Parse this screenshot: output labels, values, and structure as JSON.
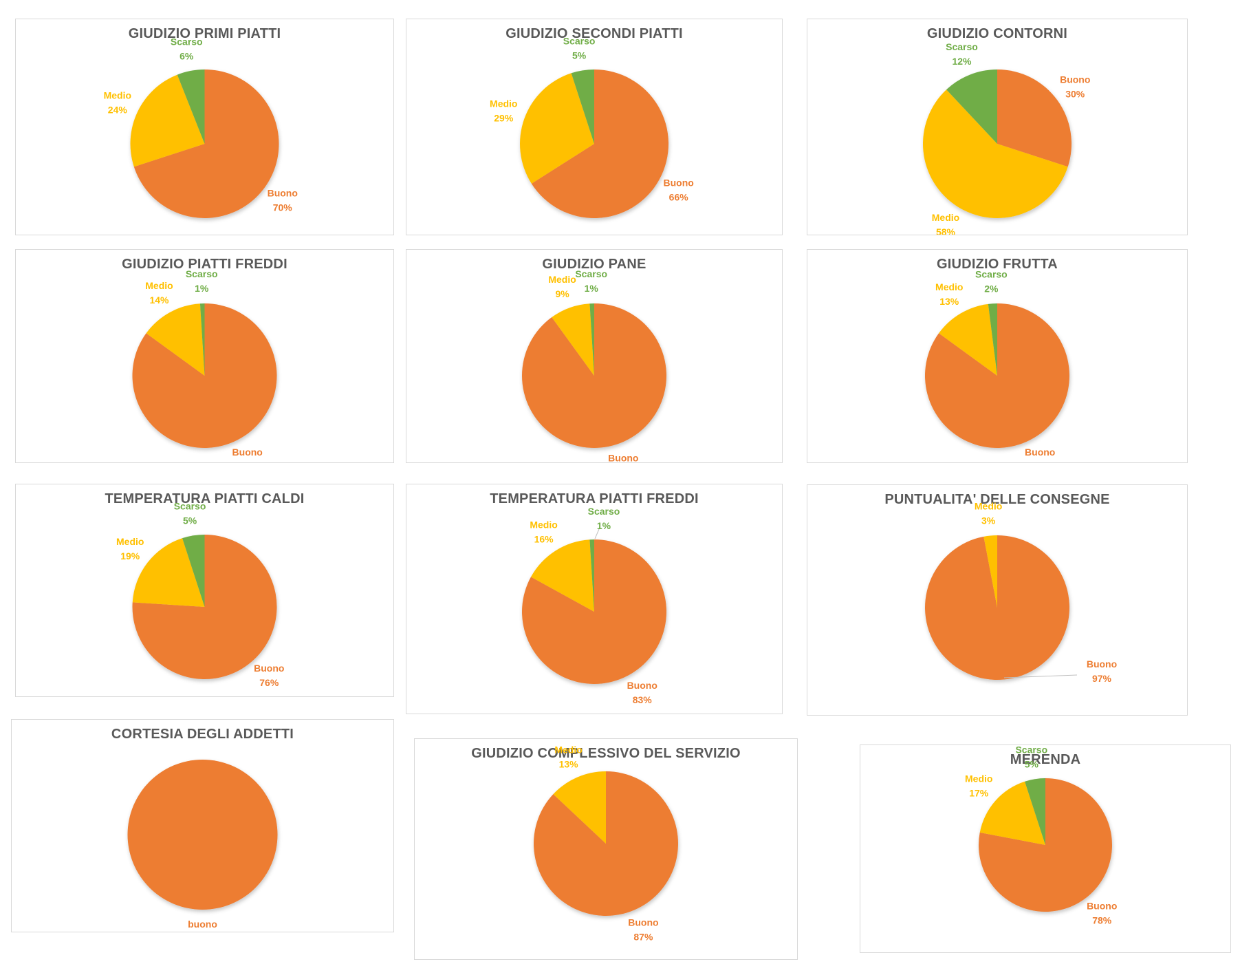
{
  "page": {
    "background": "#ffffff"
  },
  "colors": {
    "buono": "#ED7D31",
    "medio": "#FFC000",
    "scarso": "#70AD47",
    "title": "#595959",
    "box_border": "#D9D9D9",
    "leader_line": "#BFBFBF"
  },
  "chart_data": [
    {
      "type": "pie",
      "title": "GIUDIZIO PRIMI PIATTI",
      "legend": "none",
      "labels_format": "category name + percentage",
      "slices": [
        {
          "label": "Buono",
          "value": 70
        },
        {
          "label": "Medio",
          "value": 24
        },
        {
          "label": "Scarso",
          "value": 6
        }
      ]
    },
    {
      "type": "pie",
      "title": "GIUDIZIO SECONDI PIATTI",
      "legend": "none",
      "slices": [
        {
          "label": "Buono",
          "value": 66
        },
        {
          "label": "Medio",
          "value": 29
        },
        {
          "label": "Scarso",
          "value": 5
        }
      ]
    },
    {
      "type": "pie",
      "title": "GIUDIZIO CONTORNI",
      "legend": "none",
      "slices": [
        {
          "label": "Buono",
          "value": 30
        },
        {
          "label": "Medio",
          "value": 58
        },
        {
          "label": "Scarso",
          "value": 12
        }
      ]
    },
    {
      "type": "pie",
      "title": "GIUDIZIO PIATTI FREDDI",
      "legend": "none",
      "slices": [
        {
          "label": "Buono",
          "value": 85
        },
        {
          "label": "Medio",
          "value": 14
        },
        {
          "label": "Scarso",
          "value": 1
        }
      ]
    },
    {
      "type": "pie",
      "title": "GIUDIZIO PANE",
      "legend": "none",
      "slices": [
        {
          "label": "Buono",
          "value": 90
        },
        {
          "label": "Medio",
          "value": 9
        },
        {
          "label": "Scarso",
          "value": 1
        }
      ]
    },
    {
      "type": "pie",
      "title": "GIUDIZIO FRUTTA",
      "legend": "none",
      "slices": [
        {
          "label": "Buono",
          "value": 85
        },
        {
          "label": "Medio",
          "value": 13
        },
        {
          "label": "Scarso",
          "value": 2
        }
      ]
    },
    {
      "type": "pie",
      "title": "TEMPERATURA PIATTI CALDI",
      "legend": "none",
      "slices": [
        {
          "label": "Buono",
          "value": 76
        },
        {
          "label": "Medio",
          "value": 19
        },
        {
          "label": "Scarso",
          "value": 5
        }
      ]
    },
    {
      "type": "pie",
      "title": "TEMPERATURA PIATTI FREDDI",
      "legend": "none",
      "slices": [
        {
          "label": "Buono",
          "value": 83
        },
        {
          "label": "Medio",
          "value": 16
        },
        {
          "label": "Scarso",
          "value": 1
        }
      ]
    },
    {
      "type": "pie",
      "title": "PUNTUALITA' DELLE CONSEGNE",
      "legend": "none",
      "slices": [
        {
          "label": "Buono",
          "value": 97
        },
        {
          "label": "Medio",
          "value": 3
        }
      ]
    },
    {
      "type": "pie",
      "title": "CORTESIA DEGLI ADDETTI",
      "legend": "none",
      "slices": [
        {
          "label": "buono",
          "value": 100
        }
      ]
    },
    {
      "type": "pie",
      "title": "GIUDIZIO COMPLESSIVO DEL SERVIZIO",
      "legend": "none",
      "slices": [
        {
          "label": "Buono",
          "value": 87
        },
        {
          "label": "Medio",
          "value": 13
        }
      ]
    },
    {
      "type": "pie",
      "title": "MERENDA",
      "legend": "none",
      "slices": [
        {
          "label": "Buono",
          "value": 78
        },
        {
          "label": "Medio",
          "value": 17
        },
        {
          "label": "Scarso",
          "value": 5
        }
      ]
    }
  ]
}
